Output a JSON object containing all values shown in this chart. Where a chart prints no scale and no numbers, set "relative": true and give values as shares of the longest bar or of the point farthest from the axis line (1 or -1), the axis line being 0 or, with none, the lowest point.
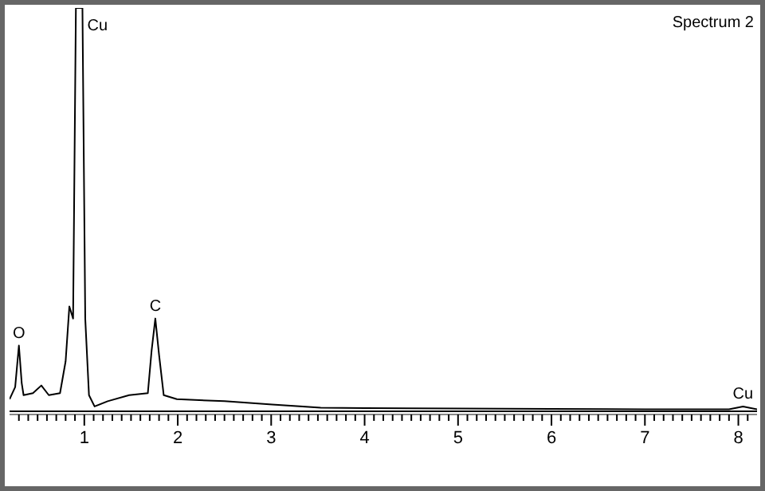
{
  "chart_data": {
    "type": "line",
    "title": "Spectrum 2",
    "relative": true,
    "x": [
      0.2,
      0.26,
      0.3,
      0.33,
      0.35,
      0.45,
      0.54,
      0.62,
      0.74,
      0.8,
      0.84,
      0.88,
      0.91,
      0.98,
      1.01,
      1.05,
      1.11,
      1.25,
      1.48,
      1.68,
      1.72,
      1.76,
      1.8,
      1.85,
      1.99,
      2.5,
      3.01,
      3.53,
      4.0,
      5.0,
      6.0,
      7.0,
      7.9,
      8.05,
      8.2
    ],
    "series": [
      {
        "color": "#000000",
        "values": [
          0.03,
          0.06,
          0.163,
          0.07,
          0.04,
          0.045,
          0.064,
          0.04,
          0.045,
          0.124,
          0.26,
          0.23,
          1,
          1,
          0.23,
          0.04,
          0.012,
          0.025,
          0.04,
          0.045,
          0.15,
          0.23,
          0.14,
          0.04,
          0.03,
          0.025,
          0.017,
          0.009,
          0.008,
          0.007,
          0.006,
          0.005,
          0.005,
          0.012,
          0.005
        ]
      }
    ],
    "xlim": [
      0.2,
      8.2
    ],
    "xticks": [
      {
        "value": 0.3,
        "label": null
      },
      {
        "value": 0.4,
        "label": null
      },
      {
        "value": 0.5,
        "label": null
      },
      {
        "value": 0.6,
        "label": null
      },
      {
        "value": 0.7,
        "label": null
      },
      {
        "value": 0.8,
        "label": null
      },
      {
        "value": 0.9,
        "label": null
      },
      1,
      {
        "value": 1.1,
        "label": null
      },
      {
        "value": 1.2,
        "label": null
      },
      {
        "value": 1.3,
        "label": null
      },
      {
        "value": 1.4,
        "label": null
      },
      {
        "value": 1.5,
        "label": null
      },
      {
        "value": 1.6,
        "label": null
      },
      {
        "value": 1.7,
        "label": null
      },
      {
        "value": 1.8,
        "label": null
      },
      {
        "value": 1.9,
        "label": null
      },
      2,
      {
        "value": 2.1,
        "label": null
      },
      {
        "value": 2.2,
        "label": null
      },
      {
        "value": 2.3,
        "label": null
      },
      {
        "value": 2.4,
        "label": null
      },
      {
        "value": 2.5,
        "label": null
      },
      {
        "value": 2.6,
        "label": null
      },
      {
        "value": 2.7,
        "label": null
      },
      {
        "value": 2.8,
        "label": null
      },
      {
        "value": 2.9,
        "label": null
      },
      3,
      {
        "value": 3.1,
        "label": null
      },
      {
        "value": 3.2,
        "label": null
      },
      {
        "value": 3.3,
        "label": null
      },
      {
        "value": 3.4,
        "label": null
      },
      {
        "value": 3.5,
        "label": null
      },
      {
        "value": 3.6,
        "label": null
      },
      {
        "value": 3.7,
        "label": null
      },
      {
        "value": 3.8,
        "label": null
      },
      {
        "value": 3.9,
        "label": null
      },
      4,
      {
        "value": 4.1,
        "label": null
      },
      {
        "value": 4.2,
        "label": null
      },
      {
        "value": 4.3,
        "label": null
      },
      {
        "value": 4.4,
        "label": null
      },
      {
        "value": 4.5,
        "label": null
      },
      {
        "value": 4.6,
        "label": null
      },
      {
        "value": 4.7,
        "label": null
      },
      {
        "value": 4.8,
        "label": null
      },
      {
        "value": 4.9,
        "label": null
      },
      5,
      {
        "value": 5.1,
        "label": null
      },
      {
        "value": 5.2,
        "label": null
      },
      {
        "value": 5.3,
        "label": null
      },
      {
        "value": 5.4,
        "label": null
      },
      {
        "value": 5.5,
        "label": null
      },
      {
        "value": 5.6,
        "label": null
      },
      {
        "value": 5.7,
        "label": null
      },
      {
        "value": 5.8,
        "label": null
      },
      {
        "value": 5.9,
        "label": null
      },
      6,
      {
        "value": 6.1,
        "label": null
      },
      {
        "value": 6.2,
        "label": null
      },
      {
        "value": 6.3,
        "label": null
      },
      {
        "value": 6.4,
        "label": null
      },
      {
        "value": 6.5,
        "label": null
      },
      {
        "value": 6.6,
        "label": null
      },
      {
        "value": 6.7,
        "label": null
      },
      {
        "value": 6.8,
        "label": null
      },
      {
        "value": 6.9,
        "label": null
      },
      7,
      {
        "value": 7.1,
        "label": null
      },
      {
        "value": 7.2,
        "label": null
      },
      {
        "value": 7.3,
        "label": null
      },
      {
        "value": 7.4,
        "label": null
      },
      {
        "value": 7.5,
        "label": null
      },
      {
        "value": 7.6,
        "label": null
      },
      {
        "value": 7.7,
        "label": null
      },
      {
        "value": 7.8,
        "label": null
      },
      {
        "value": 7.9,
        "label": null
      },
      8,
      {
        "value": 8.1,
        "label": null
      }
    ],
    "annotations": [
      {
        "text": "O",
        "x": 0.3,
        "y": 0.163
      },
      {
        "text": "Cu",
        "x": 0.98,
        "y": 1
      },
      {
        "text": "C",
        "x": 1.76,
        "y": 0.23
      },
      {
        "text": "Cu",
        "x": 8.05,
        "y": 0.012
      }
    ],
    "tick_labels": "x"
  }
}
